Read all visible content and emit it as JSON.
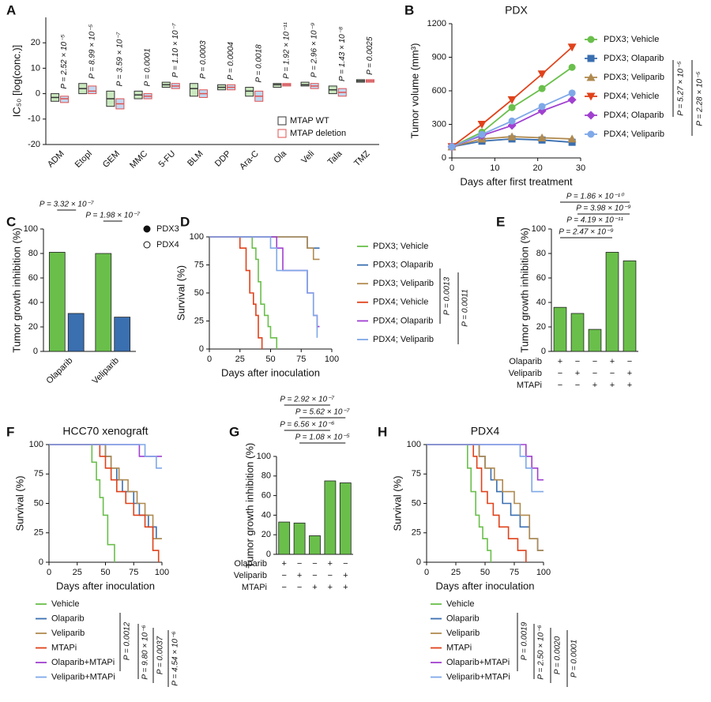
{
  "chart_data": [
    {
      "panel": "A",
      "type": "box",
      "ylabel": "IC₅₀ [log(conc.)]",
      "categories": [
        "ADM",
        "Etopl",
        "GEM",
        "MMC",
        "5-FU",
        "BLM",
        "DDP",
        "Ara-C",
        "Ola",
        "Veli",
        "Tala",
        "TMZ"
      ],
      "ylim": [
        -20,
        30
      ],
      "yticks": [
        -20,
        -10,
        0,
        10,
        20
      ],
      "series": [
        {
          "name": "MTAP WT",
          "color": "#333333",
          "fill": "#6abf4b",
          "median": [
            -1.5,
            2,
            -2,
            -0.5,
            3.5,
            2,
            2.5,
            1,
            3.5,
            3.5,
            1.5,
            5
          ],
          "q1": [
            -3,
            0,
            -5,
            -2,
            2.5,
            -1,
            1.5,
            -1,
            2.5,
            3,
            0,
            4.5
          ],
          "q3": [
            0,
            4,
            1,
            1,
            4.5,
            4,
            3.5,
            2.5,
            4,
            4.5,
            3,
            5.5
          ]
        },
        {
          "name": "MTAP deletion",
          "color": "#e05050",
          "fill": "#4a8fd6",
          "median": [
            -2,
            1,
            -4,
            -1,
            3,
            0,
            2.5,
            -1,
            3.5,
            3,
            0.5,
            5
          ],
          "q1": [
            -3.5,
            0,
            -6,
            -2,
            2,
            -1.5,
            1.5,
            -3,
            3,
            2,
            -1,
            4.5
          ],
          "q3": [
            -1,
            3,
            -2,
            0,
            4,
            1.5,
            3.5,
            1,
            4,
            4,
            2,
            5.5
          ]
        }
      ],
      "p_values": [
        "P = 2.52 × 10⁻⁵",
        "P = 8.99 × 10⁻⁵",
        "P = 3.59 × 10⁻⁷",
        "P = 0.0001",
        "P = 1.10 × 10⁻⁷",
        "P = 0.0003",
        "P = 0.0004",
        "P = 0.0018",
        "P = 1.92 × 10⁻¹¹",
        "P = 2.96 × 10⁻⁹",
        "P = 1.43 × 10⁻⁸",
        "P = 0.0025"
      ]
    },
    {
      "panel": "B",
      "type": "line",
      "title": "PDX",
      "ylabel": "Tumor volume (mm³)",
      "xlabel": "Days after first treatment",
      "x": [
        0,
        7,
        14,
        21,
        28
      ],
      "xlim": [
        0,
        30
      ],
      "xticks": [
        0,
        10,
        20,
        30
      ],
      "ylim": [
        0,
        1200
      ],
      "yticks": [
        0,
        300,
        600,
        900,
        1200
      ],
      "series": [
        {
          "name": "PDX3; Vehicle",
          "color": "#6abf4b",
          "marker": "circle",
          "values": [
            100,
            230,
            450,
            620,
            810
          ]
        },
        {
          "name": "PDX3; Olaparib",
          "color": "#3a6fb0",
          "marker": "square",
          "values": [
            100,
            150,
            170,
            160,
            140
          ]
        },
        {
          "name": "PDX3; Veliparib",
          "color": "#b08a50",
          "marker": "triangle",
          "values": [
            100,
            170,
            190,
            180,
            170
          ]
        },
        {
          "name": "PDX4; Vehicle",
          "color": "#e0421b",
          "marker": "triangle-down",
          "values": [
            100,
            300,
            520,
            750,
            990
          ]
        },
        {
          "name": "PDX4; Olaparib",
          "color": "#a040d0",
          "marker": "diamond",
          "values": [
            100,
            200,
            290,
            420,
            520
          ]
        },
        {
          "name": "PDX4; Veliparib",
          "color": "#7fa8e8",
          "marker": "circle",
          "values": [
            100,
            210,
            330,
            460,
            580
          ]
        }
      ],
      "annotations": [
        "P = 5.27 × 10⁻⁵",
        "P = 2.28 × 10⁻⁵"
      ]
    },
    {
      "panel": "C",
      "type": "bar",
      "ylabel": "Tumor growth inhibition (%)",
      "categories": [
        "Olaparib",
        "Veliparib"
      ],
      "ylim": [
        0,
        100
      ],
      "yticks": [
        0,
        20,
        40,
        60,
        80,
        100
      ],
      "series": [
        {
          "name": "PDX3",
          "color": "#6abf4b",
          "values": [
            81,
            80
          ]
        },
        {
          "name": "PDX4",
          "color": "#3a6fb0",
          "values": [
            31,
            28
          ]
        }
      ],
      "annotations": [
        "P = 3.32 × 10⁻⁷",
        "P = 1.98 × 10⁻⁷"
      ]
    },
    {
      "panel": "D",
      "type": "survival",
      "ylabel": "Survival (%)",
      "xlabel": "Days after inoculation",
      "xlim": [
        0,
        100
      ],
      "xticks": [
        0,
        25,
        50,
        75,
        100
      ],
      "ylim": [
        0,
        100
      ],
      "yticks": [
        0,
        25,
        50,
        75,
        100
      ],
      "series": [
        {
          "name": "PDX3; Vehicle",
          "color": "#6abf4b",
          "x": [
            0,
            35,
            38,
            40,
            42,
            45,
            48,
            50,
            55
          ],
          "values": [
            100,
            90,
            80,
            60,
            40,
            30,
            20,
            10,
            0
          ]
        },
        {
          "name": "PDX3; Olaparib",
          "color": "#3a6fb0",
          "x": [
            0,
            80,
            90
          ],
          "values": [
            100,
            90,
            90
          ]
        },
        {
          "name": "PDX3; Veliparib",
          "color": "#b08a50",
          "x": [
            0,
            80,
            85,
            90
          ],
          "values": [
            100,
            90,
            80,
            80
          ]
        },
        {
          "name": "PDX4; Vehicle",
          "color": "#e0421b",
          "x": [
            0,
            25,
            30,
            33,
            36,
            38,
            40,
            43
          ],
          "values": [
            100,
            90,
            70,
            50,
            40,
            30,
            10,
            0
          ]
        },
        {
          "name": "PDX4; Olaparib",
          "color": "#a040d0",
          "x": [
            0,
            55,
            60,
            80,
            85,
            88,
            90
          ],
          "values": [
            100,
            90,
            70,
            50,
            30,
            20,
            20
          ]
        },
        {
          "name": "PDX4; Veliparib",
          "color": "#7fa8e8",
          "x": [
            0,
            50,
            55,
            80,
            85,
            88
          ],
          "values": [
            100,
            90,
            70,
            50,
            30,
            10
          ]
        }
      ],
      "annotations": [
        "P = 0.0013",
        "P = 0.0011"
      ]
    },
    {
      "panel": "E",
      "type": "bar",
      "ylabel": "Tumor growth inhibition (%)",
      "color": "#6abf4b",
      "values": [
        36,
        31,
        18,
        81,
        74
      ],
      "ylim": [
        0,
        100
      ],
      "yticks": [
        0,
        20,
        40,
        60,
        80,
        100
      ],
      "conditions": [
        {
          "name": "Olaparib",
          "values": [
            "+",
            "−",
            "−",
            "+",
            "−"
          ]
        },
        {
          "name": "Veliparib",
          "values": [
            "−",
            "+",
            "−",
            "−",
            "+"
          ]
        },
        {
          "name": "MTAPi",
          "values": [
            "−",
            "−",
            "+",
            "+",
            "+"
          ]
        }
      ],
      "annotations": [
        "P = 1.86 × 10⁻¹⁰",
        "P = 3.98 × 10⁻⁹",
        "P = 4.19 × 10⁻¹¹",
        "P = 2.47 × 10⁻⁹"
      ]
    },
    {
      "panel": "F",
      "type": "survival",
      "title": "HCC70 xenograft",
      "ylabel": "Survival (%)",
      "xlabel": "Days after inoculation",
      "xlim": [
        0,
        100
      ],
      "xticks": [
        0,
        25,
        50,
        75,
        100
      ],
      "ylim": [
        0,
        100
      ],
      "yticks": [
        0,
        25,
        50,
        75,
        100
      ],
      "series": [
        {
          "name": "Vehicle",
          "color": "#6abf4b",
          "x": [
            0,
            38,
            42,
            45,
            48,
            52,
            58
          ],
          "values": [
            100,
            85,
            70,
            55,
            40,
            15,
            0
          ]
        },
        {
          "name": "Olaparib",
          "color": "#3a6fb0",
          "x": [
            0,
            50,
            55,
            60,
            65,
            75,
            80,
            88,
            95,
            100
          ],
          "values": [
            100,
            90,
            80,
            70,
            60,
            50,
            40,
            30,
            20,
            20
          ]
        },
        {
          "name": "Veliparib",
          "color": "#b08a50",
          "x": [
            0,
            50,
            55,
            62,
            70,
            78,
            85,
            92,
            100
          ],
          "values": [
            100,
            90,
            80,
            70,
            60,
            50,
            40,
            20,
            20
          ]
        },
        {
          "name": "MTAPi",
          "color": "#e0421b",
          "x": [
            0,
            45,
            50,
            55,
            60,
            68,
            75,
            85,
            92,
            97
          ],
          "values": [
            100,
            90,
            80,
            70,
            60,
            50,
            40,
            30,
            10,
            0
          ]
        },
        {
          "name": "Olaparib+MTAPi",
          "color": "#a040d0",
          "x": [
            0,
            80,
            100
          ],
          "values": [
            100,
            90,
            90
          ]
        },
        {
          "name": "Veliparib+MTAPi",
          "color": "#7fa8e8",
          "x": [
            0,
            85,
            95,
            100
          ],
          "values": [
            100,
            90,
            80,
            80
          ]
        }
      ],
      "annotations": [
        "P = 0.0012",
        "P = 9.80 × 10⁻⁶",
        "P = 0.0037",
        "P = 4.54 × 10⁻⁶"
      ]
    },
    {
      "panel": "G",
      "type": "bar",
      "ylabel": "Tumor growth inhibition (%)",
      "color": "#6abf4b",
      "values": [
        33,
        32,
        19,
        75,
        73
      ],
      "ylim": [
        0,
        100
      ],
      "yticks": [
        0,
        20,
        40,
        60,
        80,
        100
      ],
      "conditions": [
        {
          "name": "Olaparib",
          "values": [
            "+",
            "−",
            "−",
            "+",
            "−"
          ]
        },
        {
          "name": "Veliparib",
          "values": [
            "−",
            "+",
            "−",
            "−",
            "+"
          ]
        },
        {
          "name": "MTAPi",
          "values": [
            "−",
            "−",
            "+",
            "+",
            "+"
          ]
        }
      ],
      "annotations": [
        "P = 2.92 × 10⁻⁷",
        "P = 5.62 × 10⁻⁷",
        "P = 6.56 × 10⁻⁶",
        "P = 1.08 × 10⁻⁵"
      ]
    },
    {
      "panel": "H",
      "type": "survival",
      "title": "PDX4",
      "ylabel": "Survival (%)",
      "xlabel": "Days after inoculation",
      "xlim": [
        0,
        100
      ],
      "xticks": [
        0,
        25,
        50,
        75,
        100
      ],
      "ylim": [
        0,
        100
      ],
      "yticks": [
        0,
        25,
        50,
        75,
        100
      ],
      "series": [
        {
          "name": "Vehicle",
          "color": "#6abf4b",
          "x": [
            0,
            35,
            38,
            42,
            45,
            48,
            52,
            55
          ],
          "values": [
            100,
            80,
            60,
            40,
            30,
            20,
            10,
            0
          ]
        },
        {
          "name": "Olaparib",
          "color": "#3a6fb0",
          "x": [
            0,
            45,
            50,
            55,
            60,
            65,
            72,
            80,
            88,
            95,
            100
          ],
          "values": [
            100,
            90,
            80,
            70,
            60,
            50,
            40,
            30,
            20,
            10,
            10
          ]
        },
        {
          "name": "Veliparib",
          "color": "#b08a50",
          "x": [
            0,
            45,
            50,
            58,
            65,
            75,
            80,
            88,
            95,
            100
          ],
          "values": [
            100,
            90,
            80,
            70,
            60,
            50,
            40,
            20,
            10,
            10
          ]
        },
        {
          "name": "MTAPi",
          "color": "#e0421b",
          "x": [
            0,
            40,
            43,
            47,
            52,
            57,
            62,
            70,
            78,
            85
          ],
          "values": [
            100,
            90,
            80,
            60,
            50,
            40,
            30,
            20,
            10,
            0
          ]
        },
        {
          "name": "Olaparib+MTAPi",
          "color": "#a040d0",
          "x": [
            0,
            85,
            90,
            95,
            100
          ],
          "values": [
            100,
            90,
            80,
            70,
            70
          ]
        },
        {
          "name": "Veliparib+MTAPi",
          "color": "#7fa8e8",
          "x": [
            0,
            80,
            85,
            90,
            100
          ],
          "values": [
            100,
            90,
            80,
            60,
            60
          ]
        }
      ],
      "annotations": [
        "P = 0.0019",
        "P = 2.50 × 10⁻⁶",
        "P = 0.0020",
        "P = 0.0001"
      ]
    }
  ]
}
